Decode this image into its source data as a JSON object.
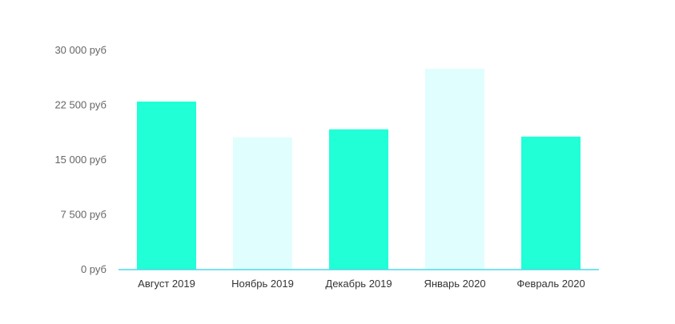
{
  "chart_data": {
    "type": "bar",
    "categories": [
      "Август 2019",
      "Ноябрь 2019",
      "Декабрь 2019",
      "Январь 2020",
      "Февраль 2020"
    ],
    "values": [
      23000,
      18100,
      19200,
      27500,
      18200
    ],
    "bar_colors": [
      "#20ffd6",
      "#e0fefd",
      "#20ffd6",
      "#e0fefd",
      "#20ffd6"
    ],
    "axis_color": "#4dd9e6",
    "ylim": [
      0,
      30000
    ],
    "y_ticks": [
      {
        "value": 0,
        "label": "0 руб"
      },
      {
        "value": 7500,
        "label": "7 500 руб"
      },
      {
        "value": 15000,
        "label": "15 000 руб"
      },
      {
        "value": 22500,
        "label": "22 500 руб"
      },
      {
        "value": 30000,
        "label": "30 000 руб"
      }
    ],
    "grid": false,
    "legend": "none",
    "title": "",
    "xlabel": "",
    "ylabel": ""
  }
}
